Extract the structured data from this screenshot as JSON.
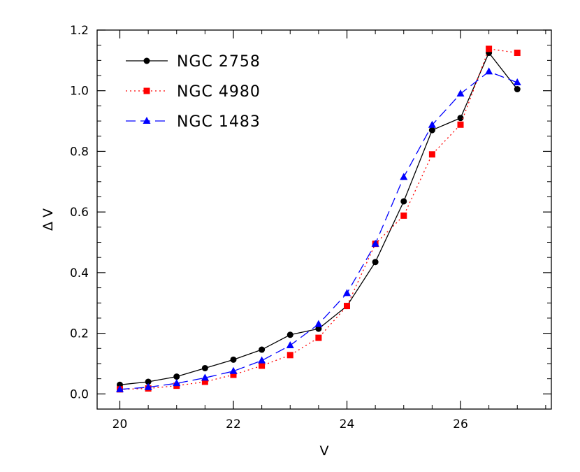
{
  "chart_data": {
    "type": "line",
    "xlabel": "V",
    "ylabel": "Δ V",
    "xlim": [
      19.6,
      27.6
    ],
    "ylim": [
      -0.05,
      1.2
    ],
    "xticks": [
      20,
      22,
      24,
      26
    ],
    "xtick_labels": [
      "20",
      "22",
      "24",
      "26"
    ],
    "yticks": [
      0.0,
      0.2,
      0.4,
      0.6,
      0.8,
      1.0,
      1.2
    ],
    "ytick_labels": [
      "0.0",
      "0.2",
      "0.4",
      "0.6",
      "0.8",
      "1.0",
      "1.2"
    ],
    "grid": false,
    "legend_position": "top-left",
    "x": [
      20.0,
      20.5,
      21.0,
      21.5,
      22.0,
      22.5,
      23.0,
      23.5,
      24.0,
      24.5,
      25.0,
      25.5,
      26.0,
      26.5,
      27.0
    ],
    "series": [
      {
        "name": "NGC 2758",
        "color": "#000000",
        "line_style": "solid",
        "marker": "circle",
        "values": [
          0.03,
          0.04,
          0.057,
          0.085,
          0.113,
          0.146,
          0.195,
          0.215,
          0.29,
          0.435,
          0.635,
          0.87,
          0.91,
          1.125,
          1.005
        ]
      },
      {
        "name": "NGC 4980",
        "color": "#ff0000",
        "line_style": "dotted",
        "marker": "square",
        "values": [
          0.015,
          0.018,
          0.027,
          0.04,
          0.063,
          0.093,
          0.128,
          0.185,
          0.29,
          0.495,
          0.588,
          0.79,
          0.888,
          1.138,
          1.125
        ]
      },
      {
        "name": "NGC 1483",
        "color": "#0000ff",
        "line_style": "dashed",
        "marker": "triangle",
        "values": [
          0.015,
          0.022,
          0.035,
          0.053,
          0.075,
          0.11,
          0.16,
          0.23,
          0.332,
          0.495,
          0.715,
          0.887,
          0.99,
          1.063,
          1.027
        ]
      }
    ]
  }
}
